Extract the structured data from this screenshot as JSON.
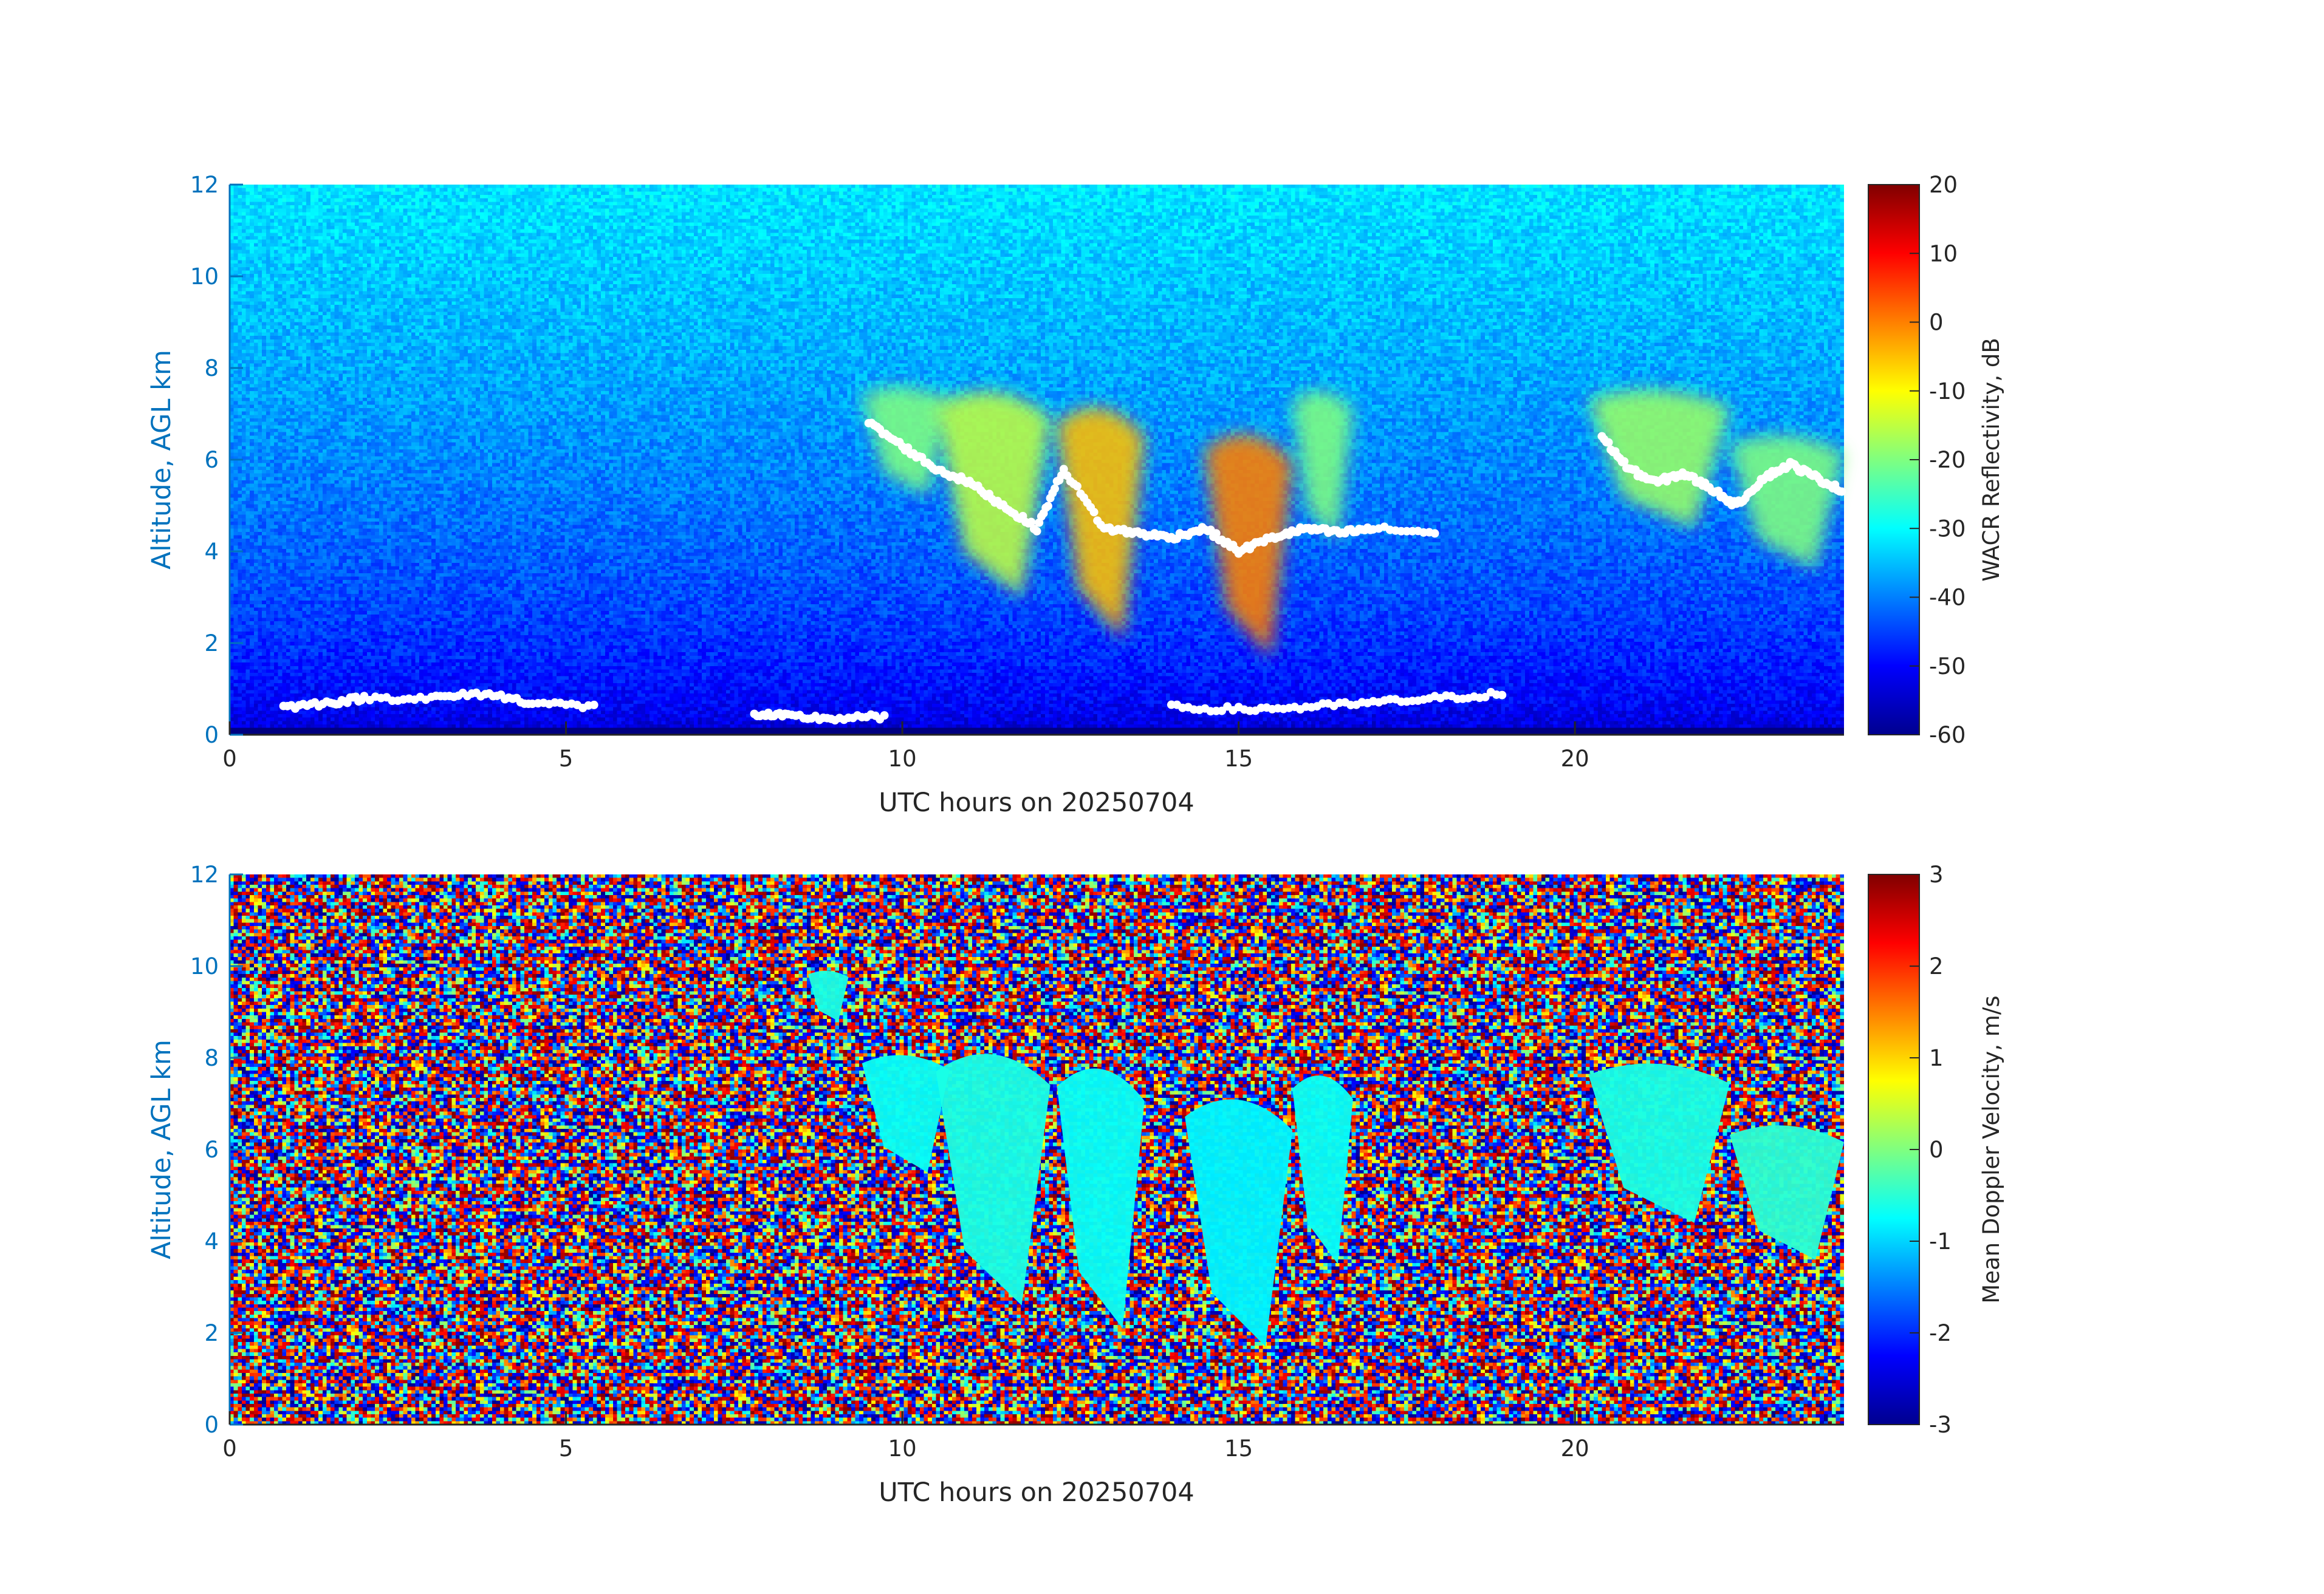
{
  "chart_data": [
    {
      "type": "heatmap",
      "title": "",
      "xlabel": "UTC hours on 20250704",
      "ylabel": "Altitude, AGL km",
      "xlim": [
        0,
        24
      ],
      "ylim": [
        0,
        12
      ],
      "x_ticks": [
        0,
        5,
        10,
        15,
        20
      ],
      "y_ticks": [
        0,
        2,
        4,
        6,
        8,
        10,
        12
      ],
      "colorbar": {
        "label": "WACR Reflectivity, dB",
        "range": [
          -60,
          20
        ],
        "ticks": [
          -60,
          -50,
          -40,
          -30,
          -20,
          -10,
          0,
          10,
          20
        ],
        "colormap": "jet"
      },
      "background": {
        "value_near_ground": -55,
        "value_at_top": -32
      },
      "cloud_regions": [
        {
          "x_range": [
            9.4,
            10.7
          ],
          "top_km": 7.8,
          "base_km": 5.2,
          "value": -20
        },
        {
          "x_range": [
            10.5,
            12.2
          ],
          "top_km": 7.9,
          "base_km": 3.0,
          "value": -15
        },
        {
          "x_range": [
            12.3,
            13.6
          ],
          "top_km": 7.6,
          "base_km": 2.1,
          "value": -5
        },
        {
          "x_range": [
            14.5,
            15.8
          ],
          "top_km": 7.0,
          "base_km": 1.7,
          "value": 0
        },
        {
          "x_range": [
            15.8,
            16.7
          ],
          "top_km": 7.8,
          "base_km": 4.2,
          "value": -20
        },
        {
          "x_range": [
            20.2,
            22.3
          ],
          "top_km": 7.8,
          "base_km": 4.5,
          "value": -18
        },
        {
          "x_range": [
            22.3,
            24.0
          ],
          "top_km": 6.8,
          "base_km": 3.6,
          "value": -20
        }
      ],
      "marker_tracks": [
        {
          "x": [
            0.8,
            1.5,
            2.0,
            3.0,
            3.8,
            4.5,
            5.5
          ],
          "y": [
            0.6,
            0.7,
            0.8,
            0.8,
            0.9,
            0.7,
            0.6
          ]
        },
        {
          "x": [
            7.8,
            8.3,
            9.0,
            9.8
          ],
          "y": [
            0.45,
            0.4,
            0.35,
            0.4
          ]
        },
        {
          "x": [
            14.0,
            15.0,
            16.0,
            17.0,
            18.0,
            19.0
          ],
          "y": [
            0.6,
            0.55,
            0.6,
            0.7,
            0.8,
            0.9
          ]
        },
        {
          "x": [
            9.5,
            10.0,
            10.5,
            11.0,
            11.5,
            12.0,
            12.4,
            13.0,
            13.5,
            14.0,
            14.5,
            15.0,
            15.5,
            16.0,
            16.5,
            17.0,
            18.0
          ],
          "y": [
            6.8,
            6.3,
            5.8,
            5.5,
            5.0,
            4.5,
            5.8,
            4.5,
            4.4,
            4.3,
            4.5,
            4.0,
            4.3,
            4.5,
            4.4,
            4.5,
            4.4
          ]
        },
        {
          "x": [
            20.4,
            20.8,
            21.2,
            21.6,
            22.0,
            22.4,
            22.8,
            23.2,
            23.6,
            24.0
          ],
          "y": [
            6.5,
            5.8,
            5.5,
            5.7,
            5.4,
            5.0,
            5.6,
            5.9,
            5.6,
            5.3
          ]
        }
      ]
    },
    {
      "type": "heatmap",
      "title": "",
      "xlabel": "UTC hours on 20250704",
      "ylabel": "Altitude, AGL km",
      "xlim": [
        0,
        24
      ],
      "ylim": [
        0,
        12
      ],
      "x_ticks": [
        0,
        5,
        10,
        15,
        20
      ],
      "y_ticks": [
        0,
        2,
        4,
        6,
        8,
        10,
        12
      ],
      "colorbar": {
        "label": "Mean Doppler Velocity, m/s",
        "range": [
          -3,
          3
        ],
        "ticks": [
          -3,
          -2,
          -1,
          0,
          1,
          2,
          3
        ],
        "colormap": "jet"
      },
      "background": {
        "value": "noise"
      },
      "cloud_regions": [
        {
          "x_range": [
            8.6,
            9.2
          ],
          "top_km": 10.0,
          "base_km": 8.8,
          "value": -0.6
        },
        {
          "x_range": [
            9.4,
            10.7
          ],
          "top_km": 8.3,
          "base_km": 5.5,
          "value": -0.7
        },
        {
          "x_range": [
            10.5,
            12.2
          ],
          "top_km": 8.6,
          "base_km": 2.6,
          "value": -0.6
        },
        {
          "x_range": [
            12.3,
            13.6
          ],
          "top_km": 8.3,
          "base_km": 2.1,
          "value": -0.7
        },
        {
          "x_range": [
            14.2,
            15.8
          ],
          "top_km": 7.6,
          "base_km": 1.7,
          "value": -0.8
        },
        {
          "x_range": [
            15.8,
            16.7
          ],
          "top_km": 8.0,
          "base_km": 3.5,
          "value": -0.7
        },
        {
          "x_range": [
            20.2,
            22.3
          ],
          "top_km": 8.2,
          "base_km": 4.4,
          "value": -0.6
        },
        {
          "x_range": [
            22.3,
            24.0
          ],
          "top_km": 6.8,
          "base_km": 3.6,
          "value": -0.5
        }
      ]
    }
  ]
}
